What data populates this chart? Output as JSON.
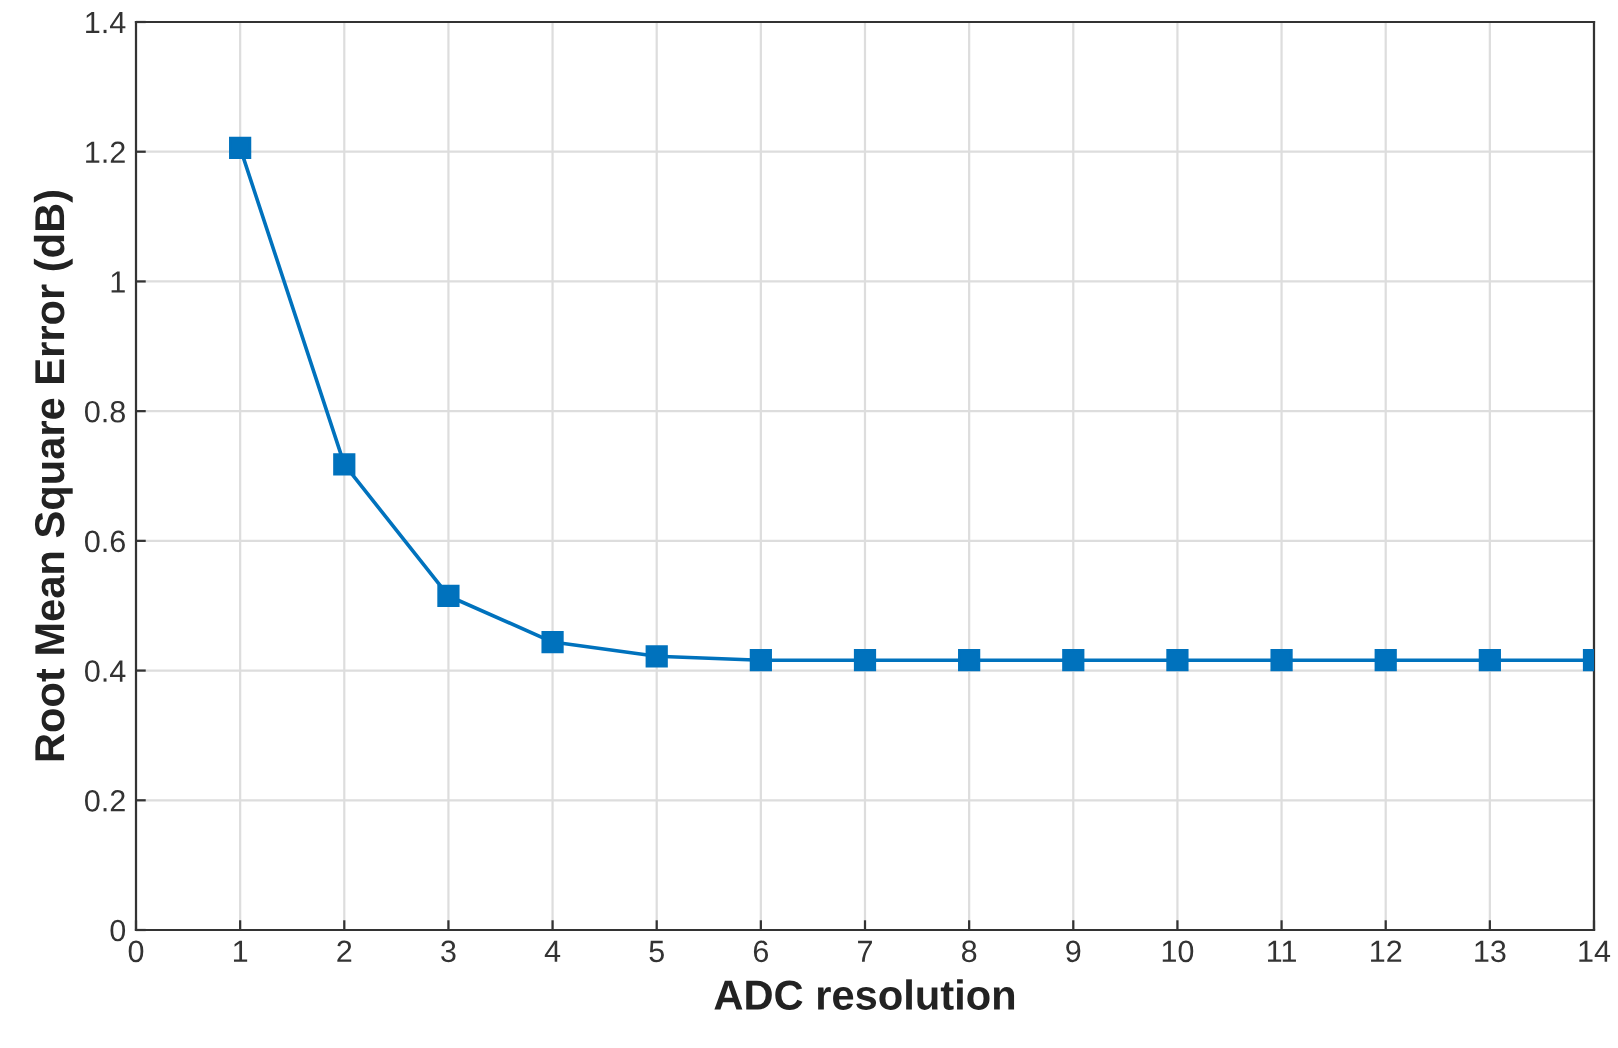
{
  "chart_data": {
    "type": "line",
    "xlabel": "ADC resolution",
    "ylabel": "Root Mean Square Error (dB)",
    "x": [
      1,
      2,
      3,
      4,
      5,
      6,
      7,
      8,
      9,
      10,
      11,
      12,
      13,
      14
    ],
    "series": [
      {
        "color": "#0072bd",
        "values": [
          1.206,
          0.718,
          0.515,
          0.444,
          0.422,
          0.416,
          0.416,
          0.416,
          0.416,
          0.416,
          0.416,
          0.416,
          0.416,
          0.416
        ]
      }
    ],
    "xlim": [
      0,
      14
    ],
    "xticks": [
      0,
      1,
      2,
      3,
      4,
      5,
      6,
      7,
      8,
      9,
      10,
      11,
      12,
      13,
      14
    ],
    "ylim": [
      0,
      1.4
    ],
    "yticks": [
      0,
      0.2,
      0.4,
      0.6,
      0.8,
      1,
      1.2,
      1.4
    ],
    "grid": true,
    "marker": "square",
    "line_style": "solid"
  }
}
